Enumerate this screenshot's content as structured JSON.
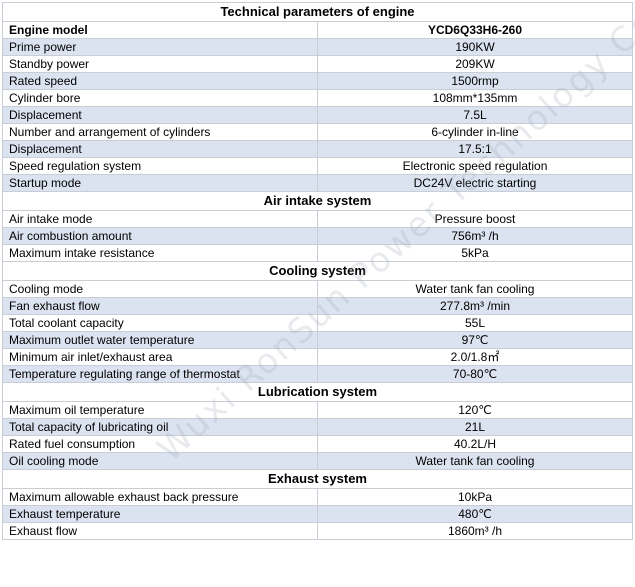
{
  "title": "Technical parameters of engine",
  "watermark": "Wuxi RonSun Power Technology Co.,",
  "header": {
    "label": "Engine model",
    "value": "YCD6Q33H6-260"
  },
  "engine_rows": [
    {
      "label": "Prime power",
      "value": "190KW"
    },
    {
      "label": "Standby power",
      "value": "209KW"
    },
    {
      "label": "Rated speed",
      "value": "1500rmp"
    },
    {
      "label": "Cylinder bore",
      "value": "108mm*135mm"
    },
    {
      "label": "Displacement",
      "value": "7.5L"
    },
    {
      "label": "Number and arrangement of cylinders",
      "value": "6-cylinder in-line"
    },
    {
      "label": "Displacement",
      "value": "17.5:1"
    },
    {
      "label": "Speed regulation system",
      "value": "Electronic speed regulation"
    },
    {
      "label": "Startup mode",
      "value": "DC24V electric starting"
    }
  ],
  "air_intake": {
    "title": "Air intake system",
    "rows": [
      {
        "label": "Air intake mode",
        "value": "Pressure boost"
      },
      {
        "label": "Air combustion amount",
        "value": "756m³ /h"
      },
      {
        "label": "Maximum intake resistance",
        "value": "5kPa"
      }
    ]
  },
  "cooling": {
    "title": "Cooling system",
    "rows": [
      {
        "label": "Cooling mode",
        "value": "Water tank fan cooling"
      },
      {
        "label": "Fan exhaust flow",
        "value": "277.8m³  /min"
      },
      {
        "label": "Total coolant capacity",
        "value": "55L"
      },
      {
        "label": "Maximum outlet water temperature",
        "value": "97℃"
      },
      {
        "label": "Minimum air inlet/exhaust area",
        "value": "2.0/1.8㎡"
      },
      {
        "label": "Temperature regulating range of thermostat",
        "value": "70-80℃"
      }
    ]
  },
  "lubrication": {
    "title": "Lubrication system",
    "rows": [
      {
        "label": "Maximum oil temperature",
        "value": "120℃"
      },
      {
        "label": "Total capacity of lubricating oil",
        "value": "21L"
      },
      {
        "label": "Rated fuel consumption",
        "value": "40.2L/H"
      },
      {
        "label": "Oil cooling mode",
        "value": "Water tank fan cooling"
      }
    ]
  },
  "exhaust": {
    "title": "Exhaust system",
    "rows": [
      {
        "label": "Maximum allowable exhaust back pressure",
        "value": "10kPa"
      },
      {
        "label": "Exhaust temperature",
        "value": "480℃"
      },
      {
        "label": "Exhaust flow",
        "value": "1860m³ /h"
      }
    ]
  }
}
